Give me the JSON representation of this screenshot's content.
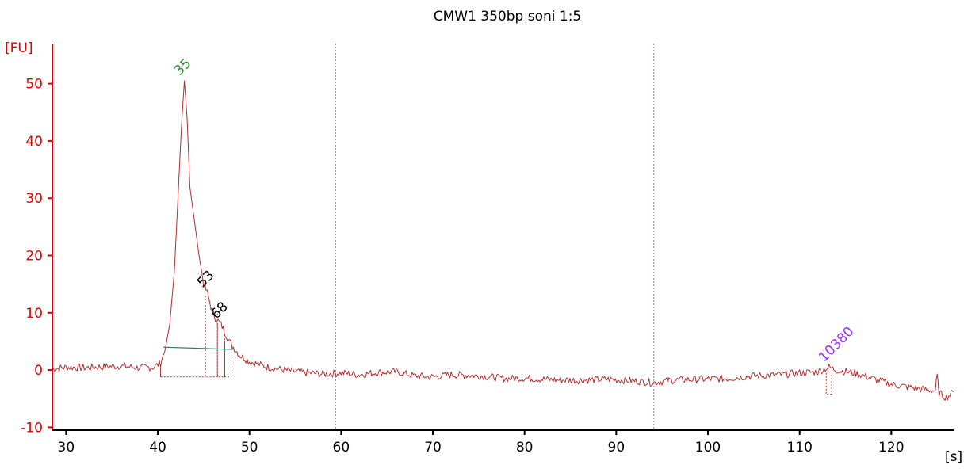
{
  "chart_data": {
    "type": "line",
    "title": "CMW1 350bp soni 1:5",
    "xlabel": "[s]",
    "ylabel": "[FU]",
    "xlim": [
      28.5,
      126.8
    ],
    "ylim": [
      -10.5,
      57
    ],
    "xticks": [
      "30",
      "40",
      "50",
      "60",
      "70",
      "80",
      "90",
      "100",
      "110",
      "120"
    ],
    "yticks": [
      "-10",
      "0",
      "10",
      "20",
      "30",
      "40",
      "50"
    ],
    "colors": {
      "trace": "#b03030",
      "y_axis": "#e00000",
      "x_axis": "#000000",
      "baseline": "#2e7d6a",
      "marker_lower": "#2a8a2a",
      "marker_upper": "#9b30ff",
      "peak_default": "#000000",
      "region_line": "#8080c0"
    },
    "region_markers": [
      59.4,
      94.1
    ],
    "peaks": [
      {
        "label": "35",
        "x": 42.9,
        "y": 50.5,
        "kind": "lower-marker"
      },
      {
        "label": "53",
        "x": 45.4,
        "y": 13.5,
        "kind": "peak"
      },
      {
        "label": "68",
        "x": 46.9,
        "y": 8.0,
        "kind": "peak"
      },
      {
        "label": "10380",
        "x": 113.2,
        "y": 0.5,
        "kind": "upper-marker"
      }
    ],
    "trace_points": [
      [
        28.5,
        0.2
      ],
      [
        30,
        0.5
      ],
      [
        32,
        0.4
      ],
      [
        34,
        0.6
      ],
      [
        36,
        0.7
      ],
      [
        38,
        0.4
      ],
      [
        39.5,
        0.5
      ],
      [
        40.3,
        1.2
      ],
      [
        40.8,
        3.5
      ],
      [
        41.3,
        8
      ],
      [
        41.8,
        17
      ],
      [
        42.2,
        30
      ],
      [
        42.6,
        43
      ],
      [
        42.9,
        50.5
      ],
      [
        43.2,
        44
      ],
      [
        43.5,
        32
      ],
      [
        44,
        26
      ],
      [
        44.5,
        20
      ],
      [
        45,
        15
      ],
      [
        45.4,
        13.5
      ],
      [
        45.8,
        11
      ],
      [
        46.3,
        9
      ],
      [
        46.9,
        8
      ],
      [
        47.5,
        6
      ],
      [
        48,
        4.5
      ],
      [
        48.5,
        3.5
      ],
      [
        49,
        2.5
      ],
      [
        50,
        1.5
      ],
      [
        52,
        0.5
      ],
      [
        55,
        -0.3
      ],
      [
        58,
        -0.7
      ],
      [
        60,
        -0.5
      ],
      [
        62,
        -0.8
      ],
      [
        64,
        -0.4
      ],
      [
        66,
        -0.3
      ],
      [
        68,
        -1.0
      ],
      [
        70,
        -1.2
      ],
      [
        72,
        -0.8
      ],
      [
        75,
        -1.0
      ],
      [
        78,
        -1.5
      ],
      [
        80,
        -1.4
      ],
      [
        83,
        -1.7
      ],
      [
        86,
        -1.8
      ],
      [
        89,
        -1.6
      ],
      [
        92,
        -1.9
      ],
      [
        94.1,
        -2.2
      ],
      [
        96,
        -1.8
      ],
      [
        99,
        -1.6
      ],
      [
        102,
        -1.5
      ],
      [
        105,
        -1.0
      ],
      [
        108,
        -0.8
      ],
      [
        110,
        -0.5
      ],
      [
        112,
        -0.3
      ],
      [
        113.2,
        0.5
      ],
      [
        114,
        0
      ],
      [
        116,
        -0.5
      ],
      [
        118,
        -1.5
      ],
      [
        120,
        -2.5
      ],
      [
        122,
        -3.0
      ],
      [
        124,
        -3.5
      ],
      [
        124.8,
        -3.6
      ],
      [
        125,
        -1.0
      ],
      [
        125.2,
        -4.0
      ],
      [
        126,
        -4.8
      ],
      [
        126.8,
        -3.8
      ]
    ]
  }
}
